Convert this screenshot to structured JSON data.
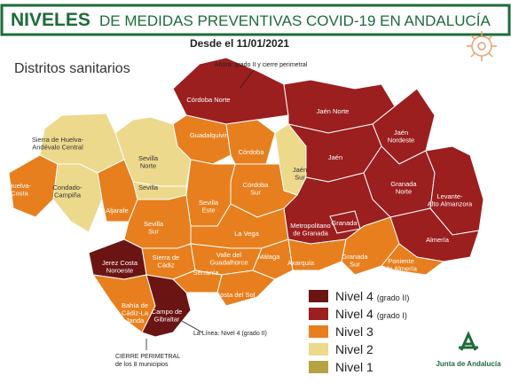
{
  "header": {
    "title_bold": "NIVELES",
    "title_rest": "DE MEDIDAS PREVENTIVAS COVID-19 EN ANDALUCÍA",
    "subtitle": "Desde el 11/01/2021"
  },
  "map": {
    "heading": "Distritos sanitarios",
    "districts": [
      {
        "lines": [
          "Córdoba Norte"
        ],
        "color": "#9b1f1f"
      },
      {
        "lines": [
          "Jaén Norte"
        ],
        "color": "#9b1f1f"
      },
      {
        "lines": [
          "Jaén",
          "Nordeste"
        ],
        "color": "#9b1f1f"
      },
      {
        "lines": [
          "Jaén"
        ],
        "color": "#9b1f1f"
      },
      {
        "lines": [
          "Granada",
          "Norte"
        ],
        "color": "#9b1f1f"
      },
      {
        "lines": [
          "Levante-",
          "Alto Almanzora"
        ],
        "color": "#9b1f1f"
      },
      {
        "lines": [
          "Almería"
        ],
        "color": "#9b1f1f"
      },
      {
        "lines": [
          "Metropolitano",
          "de Granada"
        ],
        "color": "#9b1f1f"
      },
      {
        "lines": [
          "Granada"
        ],
        "color": "#9b1f1f"
      },
      {
        "lines": [
          "Granada",
          "Sur"
        ],
        "color": "#e77f1e"
      },
      {
        "lines": [
          "Poniente",
          "de Almería"
        ],
        "color": "#e77f1e"
      },
      {
        "lines": [
          "Axarquía"
        ],
        "color": "#e77f1e"
      },
      {
        "lines": [
          "Guadalquivir"
        ],
        "color": "#e77f1e"
      },
      {
        "lines": [
          "Córdoba"
        ],
        "color": "#e77f1e"
      },
      {
        "lines": [
          "Jaén",
          "Sur"
        ],
        "color": "#ecd98c"
      },
      {
        "lines": [
          "Córdoba",
          "Sur"
        ],
        "color": "#e77f1e"
      },
      {
        "lines": [
          "Sevilla",
          "Este"
        ],
        "color": "#e77f1e"
      },
      {
        "lines": [
          "Sevilla",
          "Norte"
        ],
        "color": "#ecd98c"
      },
      {
        "lines": [
          "Sevilla"
        ],
        "color": "#ecd98c"
      },
      {
        "lines": [
          "Sierra de Huelva-",
          "Andévalo Central"
        ],
        "color": "#ecd98c"
      },
      {
        "lines": [
          "Huelva-",
          "Costa"
        ],
        "color": "#e77f1e"
      },
      {
        "lines": [
          "Condado-",
          "Campiña"
        ],
        "color": "#ecd98c"
      },
      {
        "lines": [
          "Aljarafe"
        ],
        "color": "#e77f1e"
      },
      {
        "lines": [
          "Sevilla",
          "Sur"
        ],
        "color": "#e77f1e"
      },
      {
        "lines": [
          "La Vega"
        ],
        "color": "#e77f1e"
      },
      {
        "lines": [
          "Sierra de",
          "Cádiz"
        ],
        "color": "#e77f1e"
      },
      {
        "lines": [
          "Valle del",
          "Guadalhorce"
        ],
        "color": "#e77f1e"
      },
      {
        "lines": [
          "Málaga"
        ],
        "color": "#e77f1e"
      },
      {
        "lines": [
          "Serranía"
        ],
        "color": "#e77f1e"
      },
      {
        "lines": [
          "Costa del Sol"
        ],
        "color": "#e77f1e"
      },
      {
        "lines": [
          "Jerez Costa",
          "Noroeste"
        ],
        "color": "#6b1414"
      },
      {
        "lines": [
          "Bahía de",
          "Cádiz-La",
          "Janda"
        ],
        "color": "#e77f1e"
      },
      {
        "lines": [
          "Campo de",
          "Gibraltar"
        ],
        "color": "#6b1414"
      }
    ],
    "annotations": [
      {
        "lines": [
          "Añora: grado II y cierre perimetral"
        ]
      },
      {
        "lines": [
          "La Línea: Nivel 4 (grado II)"
        ]
      },
      {
        "lines": [
          "CIERRE PERIMETRAL",
          "de los 8 municipios"
        ]
      }
    ]
  },
  "legend": [
    {
      "level": "Nivel 4",
      "grade": "(grado II)",
      "color": "#6b1414"
    },
    {
      "level": "Nivel 4",
      "grade": "(grado I)",
      "color": "#9b1f1f"
    },
    {
      "level": "Nivel 3",
      "color": "#e77f1e"
    },
    {
      "level": "Nivel 2",
      "color": "#ecd98c"
    },
    {
      "level": "Nivel 1",
      "color": "#b3a440"
    }
  ],
  "logo": "Junta de Andalucía"
}
